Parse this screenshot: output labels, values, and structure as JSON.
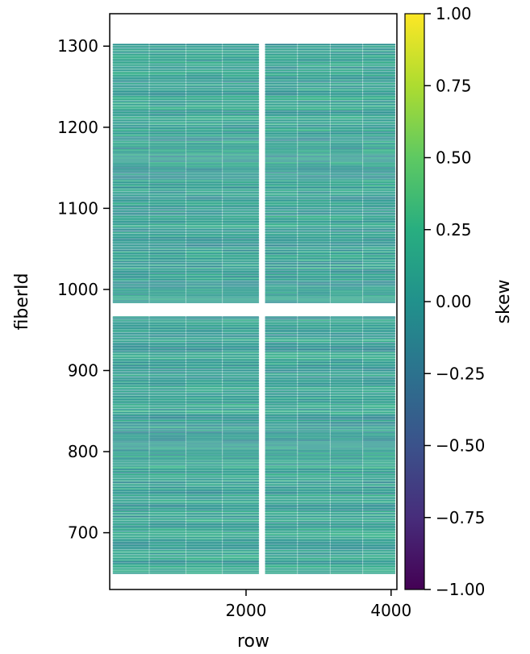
{
  "chart_data": {
    "type": "heatmap",
    "title": "",
    "xlabel": "row",
    "ylabel": "fiberId",
    "xlim": [
      120,
      4080
    ],
    "ylim": [
      630,
      1340
    ],
    "xticks": [
      2000,
      4000
    ],
    "xtick_labels": [
      "2000",
      "4000"
    ],
    "yticks": [
      700,
      800,
      900,
      1000,
      1100,
      1200,
      1300
    ],
    "ytick_labels": [
      "700",
      "800",
      "900",
      "1000",
      "1100",
      "1200",
      "1300"
    ],
    "colorbar": {
      "label": "skew",
      "colormap": "viridis",
      "vmin": -1.0,
      "vmax": 1.0,
      "ticks": [
        -1.0,
        -0.75,
        -0.5,
        -0.25,
        0.0,
        0.25,
        0.5,
        0.75,
        1.0
      ],
      "tick_labels": [
        "−1.00",
        "−0.75",
        "−0.50",
        "−0.25",
        "0.00",
        "0.25",
        "0.50",
        "0.75",
        "1.00"
      ]
    },
    "grid": false,
    "fiber_range": [
      650,
      1302
    ],
    "fiber_step": 2,
    "fiber_gap": [
      966,
      984
    ],
    "row_ranges": [
      [
        160,
        2180
      ],
      [
        2260,
        4060
      ]
    ],
    "typical_skew_range": [
      -0.3,
      0.35
    ]
  }
}
